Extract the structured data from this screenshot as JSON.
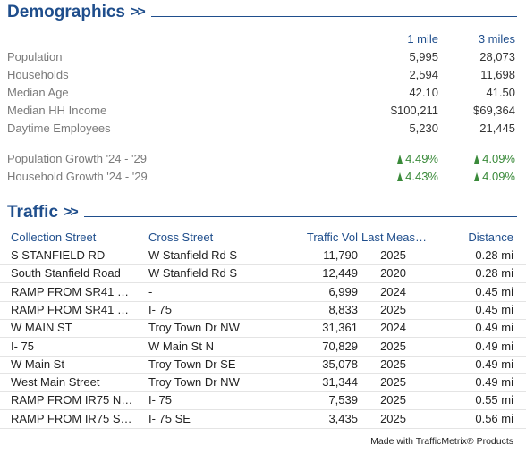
{
  "demographics": {
    "title": "Demographics",
    "chevron": ">>",
    "col1_header": "1 mile",
    "col2_header": "3 miles",
    "rows": [
      {
        "label": "Population",
        "v1": "5,995",
        "v2": "28,073"
      },
      {
        "label": "Households",
        "v1": "2,594",
        "v2": "11,698"
      },
      {
        "label": "Median Age",
        "v1": "42.10",
        "v2": "41.50"
      },
      {
        "label": "Median HH Income",
        "v1": "$100,211",
        "v2": "$69,364"
      },
      {
        "label": "Daytime Employees",
        "v1": "5,230",
        "v2": "21,445"
      }
    ],
    "growth": [
      {
        "label": "Population Growth '24 - '29",
        "v1": "4.49%",
        "v2": "4.09%"
      },
      {
        "label": "Household Growth '24 - '29",
        "v1": "4.43%",
        "v2": "4.09%"
      }
    ]
  },
  "traffic": {
    "title": "Traffic",
    "chevron": ">>",
    "headers": {
      "collection_street": "Collection Street",
      "cross_street": "Cross Street",
      "traffic_vol": "Traffic Vol",
      "last_meas": "Last Meas…",
      "distance": "Distance"
    },
    "rows": [
      {
        "collection": "S STANFIELD RD",
        "cross": "W Stanfield Rd S",
        "vol": "11,790",
        "year": "2025",
        "dist": "0.28 mi"
      },
      {
        "collection": "South Stanfield Road",
        "cross": "W Stanfield Rd S",
        "vol": "12,449",
        "year": "2020",
        "dist": "0.28 mi"
      },
      {
        "collection": "RAMP FROM SR41 …",
        "cross": "-",
        "vol": "6,999",
        "year": "2024",
        "dist": "0.45 mi"
      },
      {
        "collection": "RAMP FROM SR41 …",
        "cross": "I- 75",
        "vol": "8,833",
        "year": "2025",
        "dist": "0.45 mi"
      },
      {
        "collection": "W MAIN ST",
        "cross": "Troy Town Dr NW",
        "vol": "31,361",
        "year": "2024",
        "dist": "0.49 mi"
      },
      {
        "collection": "I- 75",
        "cross": "W Main St N",
        "vol": "70,829",
        "year": "2025",
        "dist": "0.49 mi"
      },
      {
        "collection": "W Main St",
        "cross": "Troy Town Dr SE",
        "vol": "35,078",
        "year": "2025",
        "dist": "0.49 mi"
      },
      {
        "collection": "West Main Street",
        "cross": "Troy Town Dr NW",
        "vol": "31,344",
        "year": "2025",
        "dist": "0.49 mi"
      },
      {
        "collection": "RAMP FROM IR75 N…",
        "cross": "I- 75",
        "vol": "7,539",
        "year": "2025",
        "dist": "0.55 mi"
      },
      {
        "collection": "RAMP FROM IR75 S…",
        "cross": "I- 75 SE",
        "vol": "3,435",
        "year": "2025",
        "dist": "0.56 mi"
      }
    ]
  },
  "footer": "Made with TrafficMetrix® Products",
  "colors": {
    "accent": "#1f4e8c",
    "growth": "#3a8a3a"
  }
}
